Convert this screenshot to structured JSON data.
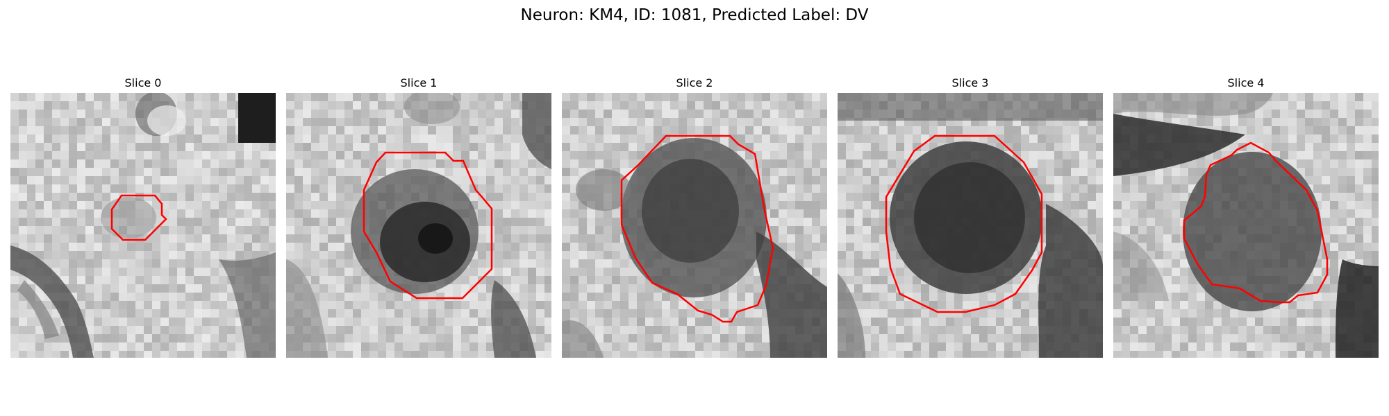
{
  "figure": {
    "title": "Neuron: KM4, ID: 1081, Predicted Label: DV"
  },
  "colors": {
    "contour": "#ff0000",
    "background": "#ffffff"
  },
  "panels": [
    {
      "title": "Slice 0"
    },
    {
      "title": "Slice 1"
    },
    {
      "title": "Slice 2"
    },
    {
      "title": "Slice 3"
    },
    {
      "title": "Slice 4"
    }
  ]
}
